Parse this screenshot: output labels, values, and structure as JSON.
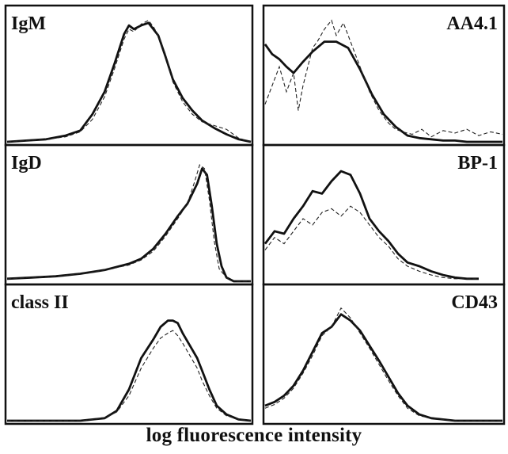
{
  "chart_data": [
    {
      "type": "line",
      "label": "IgM",
      "label_position": "top-left",
      "xlim": [
        0,
        100
      ],
      "ylim": [
        0,
        100
      ],
      "series": [
        {
          "style": "solid",
          "x": [
            0,
            8,
            16,
            24,
            30,
            35,
            40,
            44,
            48,
            50,
            52,
            55,
            58,
            60,
            62,
            65,
            68,
            72,
            76,
            80,
            85,
            90,
            95,
            100
          ],
          "y": [
            0,
            1,
            2,
            5,
            9,
            22,
            40,
            62,
            86,
            93,
            90,
            93,
            95,
            90,
            85,
            68,
            50,
            35,
            25,
            17,
            11,
            6,
            2,
            0
          ]
        },
        {
          "style": "dashed",
          "x": [
            0,
            8,
            16,
            24,
            30,
            35,
            40,
            44,
            48,
            50,
            52,
            55,
            58,
            60,
            62,
            65,
            68,
            72,
            76,
            80,
            85,
            90,
            95,
            100
          ],
          "y": [
            0,
            1,
            2,
            4,
            8,
            18,
            36,
            58,
            82,
            90,
            88,
            94,
            97,
            92,
            85,
            70,
            48,
            32,
            22,
            16,
            13,
            10,
            3,
            0
          ]
        }
      ]
    },
    {
      "type": "line",
      "label": "AA4.1",
      "label_position": "top-right",
      "xlim": [
        0,
        100
      ],
      "ylim": [
        0,
        100
      ],
      "series": [
        {
          "style": "solid",
          "x": [
            0,
            3,
            6,
            9,
            12,
            16,
            20,
            25,
            30,
            35,
            40,
            45,
            50,
            55,
            60,
            65,
            70,
            75,
            80,
            85,
            90,
            95,
            100
          ],
          "y": [
            78,
            70,
            66,
            60,
            55,
            64,
            72,
            80,
            80,
            75,
            58,
            38,
            22,
            12,
            5,
            3,
            2,
            1,
            1,
            0,
            0,
            0,
            0
          ]
        },
        {
          "style": "dashed",
          "x": [
            0,
            3,
            6,
            9,
            12,
            14,
            16,
            18,
            20,
            22,
            25,
            28,
            30,
            33,
            36,
            40,
            44,
            48,
            52,
            55,
            58,
            62,
            66,
            70,
            75,
            80,
            85,
            90,
            95,
            100
          ],
          "y": [
            30,
            45,
            60,
            40,
            55,
            25,
            45,
            60,
            75,
            80,
            90,
            97,
            85,
            95,
            80,
            60,
            40,
            25,
            15,
            10,
            8,
            6,
            10,
            4,
            9,
            7,
            10,
            5,
            8,
            6
          ]
        }
      ]
    },
    {
      "type": "line",
      "label": "IgD",
      "label_position": "top-left",
      "xlim": [
        0,
        100
      ],
      "ylim": [
        0,
        100
      ],
      "series": [
        {
          "style": "solid",
          "x": [
            0,
            10,
            20,
            30,
            40,
            50,
            55,
            60,
            65,
            70,
            74,
            78,
            80,
            82,
            84,
            86,
            88,
            90,
            93,
            96,
            100
          ],
          "y": [
            2,
            3,
            4,
            6,
            9,
            14,
            18,
            26,
            38,
            52,
            62,
            78,
            90,
            85,
            60,
            30,
            12,
            3,
            0,
            0,
            0
          ]
        },
        {
          "style": "dashed",
          "x": [
            0,
            10,
            20,
            30,
            40,
            50,
            55,
            60,
            65,
            70,
            74,
            77,
            79,
            81,
            83,
            85,
            87,
            90,
            93,
            96,
            100
          ],
          "y": [
            2,
            3,
            4,
            6,
            9,
            13,
            17,
            24,
            36,
            50,
            62,
            80,
            93,
            90,
            65,
            32,
            10,
            3,
            0,
            0,
            0
          ]
        }
      ]
    },
    {
      "type": "line",
      "label": "BP-1",
      "label_position": "top-right",
      "xlim": [
        0,
        100
      ],
      "ylim": [
        0,
        100
      ],
      "series": [
        {
          "style": "solid",
          "x": [
            0,
            4,
            8,
            12,
            16,
            20,
            24,
            28,
            32,
            36,
            40,
            44,
            48,
            52,
            56,
            60,
            65,
            70,
            75,
            80,
            85,
            90
          ],
          "y": [
            30,
            40,
            38,
            50,
            60,
            72,
            70,
            80,
            88,
            85,
            70,
            50,
            40,
            32,
            22,
            15,
            12,
            8,
            5,
            3,
            2,
            2
          ]
        },
        {
          "style": "dashed",
          "x": [
            0,
            4,
            8,
            12,
            16,
            20,
            24,
            28,
            32,
            36,
            40,
            44,
            48,
            52,
            56,
            60,
            65,
            70,
            75,
            80,
            85,
            90
          ],
          "y": [
            25,
            35,
            30,
            40,
            50,
            45,
            55,
            58,
            52,
            60,
            55,
            45,
            35,
            28,
            18,
            12,
            8,
            5,
            3,
            2,
            2,
            2
          ]
        }
      ]
    },
    {
      "type": "line",
      "label": "class II",
      "label_position": "top-left",
      "xlim": [
        0,
        100
      ],
      "ylim": [
        0,
        100
      ],
      "series": [
        {
          "style": "solid",
          "x": [
            0,
            30,
            40,
            45,
            50,
            55,
            60,
            63,
            66,
            68,
            70,
            72,
            75,
            78,
            80,
            83,
            86,
            90,
            95,
            100
          ],
          "y": [
            0,
            0,
            2,
            8,
            25,
            50,
            65,
            75,
            80,
            80,
            78,
            70,
            60,
            50,
            40,
            25,
            12,
            5,
            1,
            0
          ]
        },
        {
          "style": "dashed",
          "x": [
            0,
            30,
            40,
            45,
            50,
            55,
            60,
            63,
            66,
            68,
            70,
            72,
            75,
            78,
            80,
            83,
            86,
            90,
            95,
            100
          ],
          "y": [
            0,
            0,
            2,
            7,
            20,
            42,
            58,
            66,
            70,
            72,
            68,
            62,
            52,
            42,
            32,
            20,
            10,
            4,
            1,
            0
          ]
        }
      ]
    },
    {
      "type": "line",
      "label": "CD43",
      "label_position": "top-right",
      "xlim": [
        0,
        100
      ],
      "ylim": [
        0,
        100
      ],
      "series": [
        {
          "style": "solid",
          "x": [
            0,
            4,
            8,
            12,
            16,
            20,
            24,
            28,
            32,
            36,
            40,
            44,
            48,
            52,
            56,
            60,
            65,
            70,
            75,
            80,
            85,
            90,
            95,
            100
          ],
          "y": [
            12,
            15,
            20,
            28,
            40,
            55,
            70,
            75,
            85,
            80,
            72,
            60,
            48,
            35,
            22,
            12,
            5,
            2,
            1,
            0,
            0,
            0,
            0,
            0
          ]
        },
        {
          "style": "dashed",
          "x": [
            0,
            4,
            8,
            12,
            16,
            20,
            24,
            28,
            32,
            36,
            40,
            44,
            48,
            52,
            56,
            60,
            65,
            70,
            75,
            80,
            85,
            90,
            95,
            100
          ],
          "y": [
            10,
            13,
            18,
            26,
            38,
            52,
            68,
            75,
            90,
            82,
            70,
            58,
            45,
            32,
            20,
            10,
            4,
            2,
            1,
            0,
            0,
            0,
            0,
            0
          ]
        }
      ]
    }
  ],
  "xlabel": "log fluorescence intensity"
}
